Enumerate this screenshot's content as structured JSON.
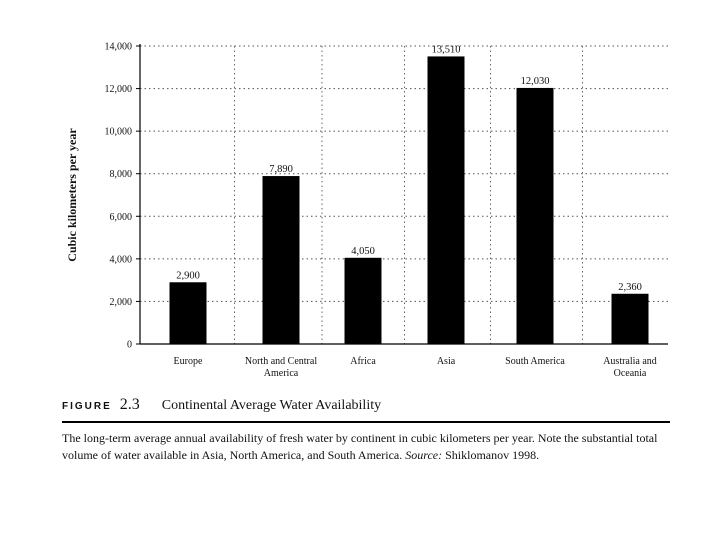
{
  "chart_data": {
    "type": "bar",
    "categories": [
      "Europe",
      "North and Central America",
      "Africa",
      "Asia",
      "South America",
      "Australia and Oceania"
    ],
    "category_lines": [
      [
        "Europe"
      ],
      [
        "North and Central",
        "America"
      ],
      [
        "Africa"
      ],
      [
        "Asia"
      ],
      [
        "South America"
      ],
      [
        "Australia and",
        "Oceania"
      ]
    ],
    "values": [
      2900,
      7890,
      4050,
      13510,
      12030,
      2360
    ],
    "value_labels": [
      "2,900",
      "7,890",
      "4,050",
      "13,510",
      "12,030",
      "2,360"
    ],
    "ylabel": "Cubic kilometers per year",
    "ylim": [
      0,
      14000
    ],
    "yticks": [
      0,
      2000,
      4000,
      6000,
      8000,
      10000,
      12000,
      14000
    ],
    "ytick_labels": [
      "0",
      "2,000",
      "4,000",
      "6,000",
      "8,000",
      "10,000",
      "12,000",
      "14,000"
    ],
    "grid": true,
    "bar_color": "#000000"
  },
  "figure": {
    "label_word": "FIGURE",
    "label_number": "2.3",
    "title": "Continental Average Water Availability",
    "text_before_source": "The long-term average annual availability of fresh water by continent in cubic kilometers per year. Note the substantial total volume of water available in Asia, North America, and South America.",
    "source_label": "Source:",
    "source_text": "Shiklomanov 1998."
  }
}
